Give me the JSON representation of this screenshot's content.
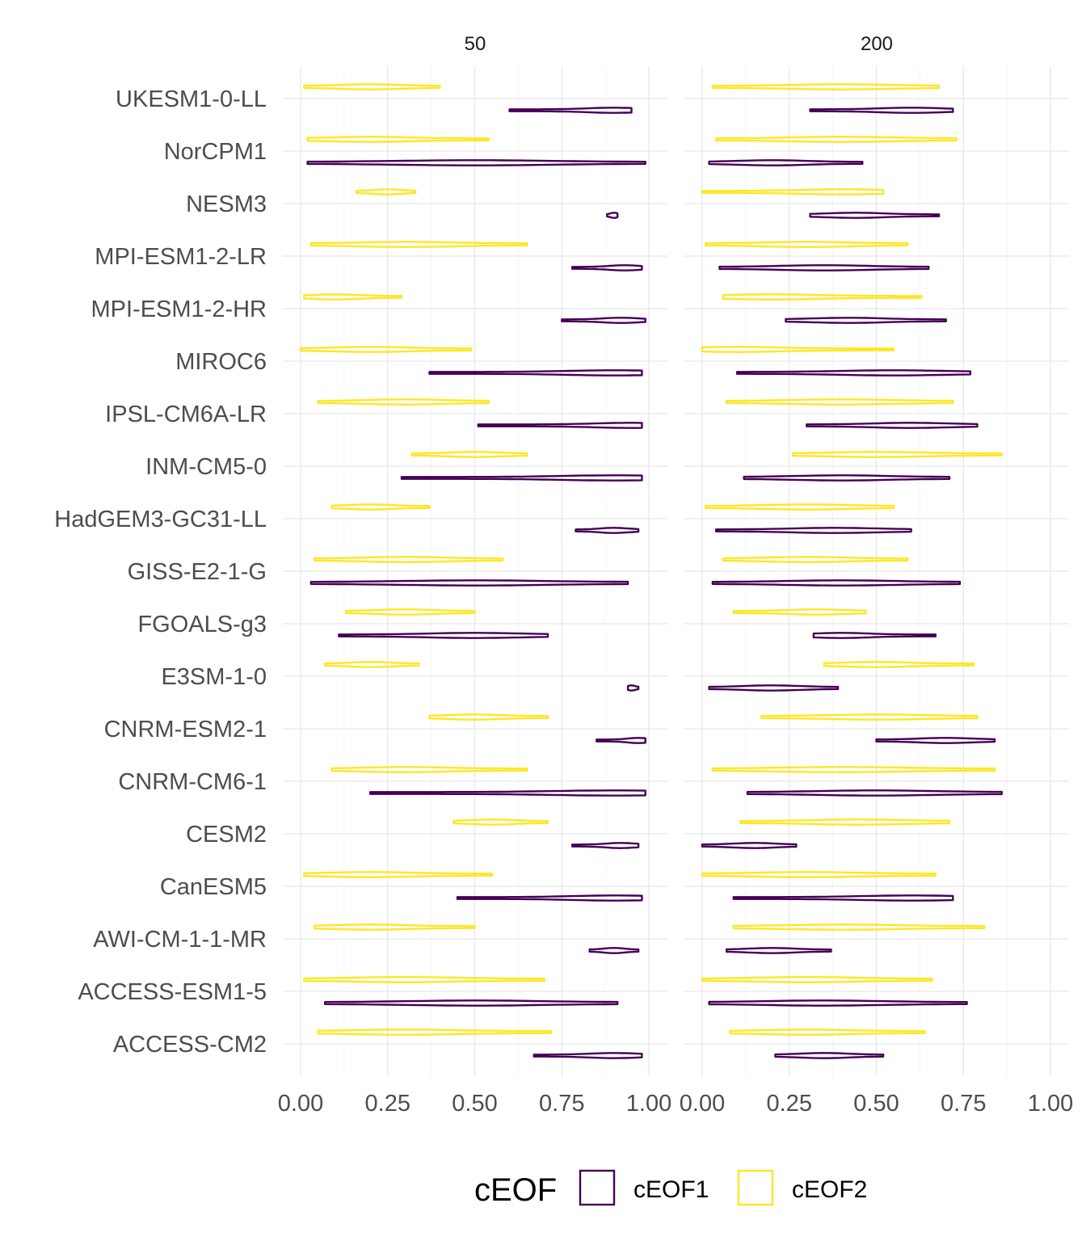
{
  "chart_data": {
    "type": "violin",
    "facets": [
      "50",
      "200"
    ],
    "xlim": [
      0,
      1
    ],
    "xticks": [
      0,
      0.25,
      0.5,
      0.75,
      1
    ],
    "xtick_labels": [
      "0.00",
      "0.25",
      "0.50",
      "0.75",
      "1.00"
    ],
    "xlabel": "",
    "ylabel": "",
    "grid": true,
    "categories": [
      "ACCESS-CM2",
      "ACCESS-ESM1-5",
      "AWI-CM-1-1-MR",
      "CanESM5",
      "CESM2",
      "CNRM-CM6-1",
      "CNRM-ESM2-1",
      "E3SM-1-0",
      "FGOALS-g3",
      "GISS-E2-1-G",
      "HadGEM3-GC31-LL",
      "INM-CM5-0",
      "IPSL-CM6A-LR",
      "MIROC6",
      "MPI-ESM1-2-HR",
      "MPI-ESM1-2-LR",
      "NESM3",
      "NorCPM1",
      "UKESM1-0-LL"
    ],
    "legend": {
      "title": "cEOF",
      "position": "bottom",
      "entries": [
        {
          "name": "cEOF1",
          "color": "#440154"
        },
        {
          "name": "cEOF2",
          "color": "#FDE725"
        }
      ]
    },
    "series": [
      {
        "facet": "50",
        "name": "cEOF1",
        "color": "#440154",
        "min": [
          0.67,
          0.07,
          0.83,
          0.45,
          0.78,
          0.2,
          0.85,
          0.94,
          0.11,
          0.03,
          0.79,
          0.29,
          0.51,
          0.37,
          0.75,
          0.78,
          0.88,
          0.02,
          0.6
        ],
        "max": [
          0.98,
          0.91,
          0.97,
          0.98,
          0.97,
          0.99,
          0.99,
          0.97,
          0.71,
          0.94,
          0.97,
          0.98,
          0.98,
          0.98,
          0.99,
          0.98,
          0.91,
          0.99,
          0.95
        ],
        "peak": [
          0.9,
          0.5,
          0.9,
          0.9,
          0.92,
          0.9,
          0.97,
          0.95,
          0.5,
          0.5,
          0.9,
          0.9,
          0.95,
          0.9,
          0.92,
          0.93,
          0.9,
          0.5,
          0.9
        ]
      },
      {
        "facet": "50",
        "name": "cEOF2",
        "color": "#FDE725",
        "min": [
          0.05,
          0.01,
          0.04,
          0.01,
          0.44,
          0.09,
          0.37,
          0.07,
          0.13,
          0.04,
          0.09,
          0.32,
          0.05,
          0.0,
          0.01,
          0.03,
          0.16,
          0.02,
          0.01
        ],
        "max": [
          0.72,
          0.7,
          0.5,
          0.55,
          0.71,
          0.65,
          0.71,
          0.34,
          0.5,
          0.58,
          0.37,
          0.65,
          0.54,
          0.49,
          0.29,
          0.65,
          0.33,
          0.54,
          0.4
        ],
        "peak": [
          0.3,
          0.3,
          0.2,
          0.2,
          0.55,
          0.3,
          0.5,
          0.2,
          0.3,
          0.3,
          0.2,
          0.5,
          0.3,
          0.2,
          0.1,
          0.3,
          0.25,
          0.2,
          0.2
        ]
      },
      {
        "facet": "200",
        "name": "cEOF1",
        "color": "#440154",
        "min": [
          0.21,
          0.02,
          0.07,
          0.09,
          0.0,
          0.13,
          0.5,
          0.02,
          0.32,
          0.03,
          0.04,
          0.12,
          0.3,
          0.1,
          0.24,
          0.05,
          0.31,
          0.02,
          0.31
        ],
        "max": [
          0.52,
          0.76,
          0.37,
          0.72,
          0.27,
          0.86,
          0.84,
          0.39,
          0.67,
          0.74,
          0.6,
          0.71,
          0.79,
          0.77,
          0.7,
          0.65,
          0.68,
          0.46,
          0.72
        ],
        "peak": [
          0.35,
          0.35,
          0.2,
          0.6,
          0.15,
          0.5,
          0.7,
          0.2,
          0.4,
          0.4,
          0.38,
          0.4,
          0.6,
          0.55,
          0.42,
          0.35,
          0.44,
          0.2,
          0.6
        ]
      },
      {
        "facet": "200",
        "name": "cEOF2",
        "color": "#FDE725",
        "min": [
          0.08,
          0.0,
          0.09,
          0.0,
          0.11,
          0.03,
          0.17,
          0.35,
          0.09,
          0.06,
          0.01,
          0.26,
          0.07,
          0.0,
          0.06,
          0.01,
          0.0,
          0.04,
          0.03
        ],
        "max": [
          0.64,
          0.66,
          0.81,
          0.67,
          0.71,
          0.84,
          0.79,
          0.78,
          0.47,
          0.59,
          0.55,
          0.86,
          0.72,
          0.55,
          0.63,
          0.59,
          0.52,
          0.73,
          0.68
        ],
        "peak": [
          0.3,
          0.3,
          0.4,
          0.3,
          0.45,
          0.4,
          0.5,
          0.5,
          0.33,
          0.3,
          0.3,
          0.5,
          0.4,
          0.1,
          0.2,
          0.3,
          0.4,
          0.4,
          0.4
        ]
      }
    ]
  }
}
